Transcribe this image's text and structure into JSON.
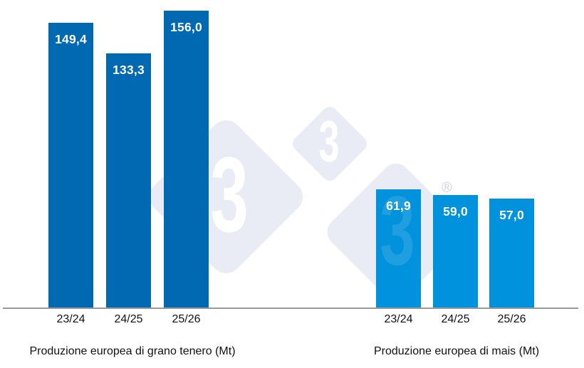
{
  "page": {
    "background": "#ffffff"
  },
  "chart_data": {
    "type": "bar",
    "categories": [
      "23/24",
      "24/25",
      "25/26"
    ],
    "groups": [
      {
        "title": "Produzione europea di grano tenero (Mt)",
        "series_name": "Grano tenero",
        "values": [
          149.4,
          133.3,
          156.0
        ],
        "value_labels": [
          "149,4",
          "133,3",
          "156,0"
        ],
        "bar_color": "#0069B2"
      },
      {
        "title": "Produzione europea di mais (Mt)",
        "series_name": "Mais",
        "values": [
          61.9,
          59.0,
          57.0
        ],
        "value_labels": [
          "61,9",
          "59,0",
          "57,0"
        ],
        "bar_color": "#0092DC"
      }
    ],
    "ylim": [
      0,
      160
    ],
    "grid": false,
    "legend": false,
    "value_label_color": "#FFFFFF",
    "axis_line_color": "#9B9B9B",
    "category_label_color": "#111111"
  },
  "watermark": {
    "name": "333-logo",
    "glyphs": [
      "3",
      "3",
      "3"
    ],
    "registered_mark": "®",
    "diamond_color": "#E9ECF5",
    "glyph_color": "#FFFFFF"
  }
}
